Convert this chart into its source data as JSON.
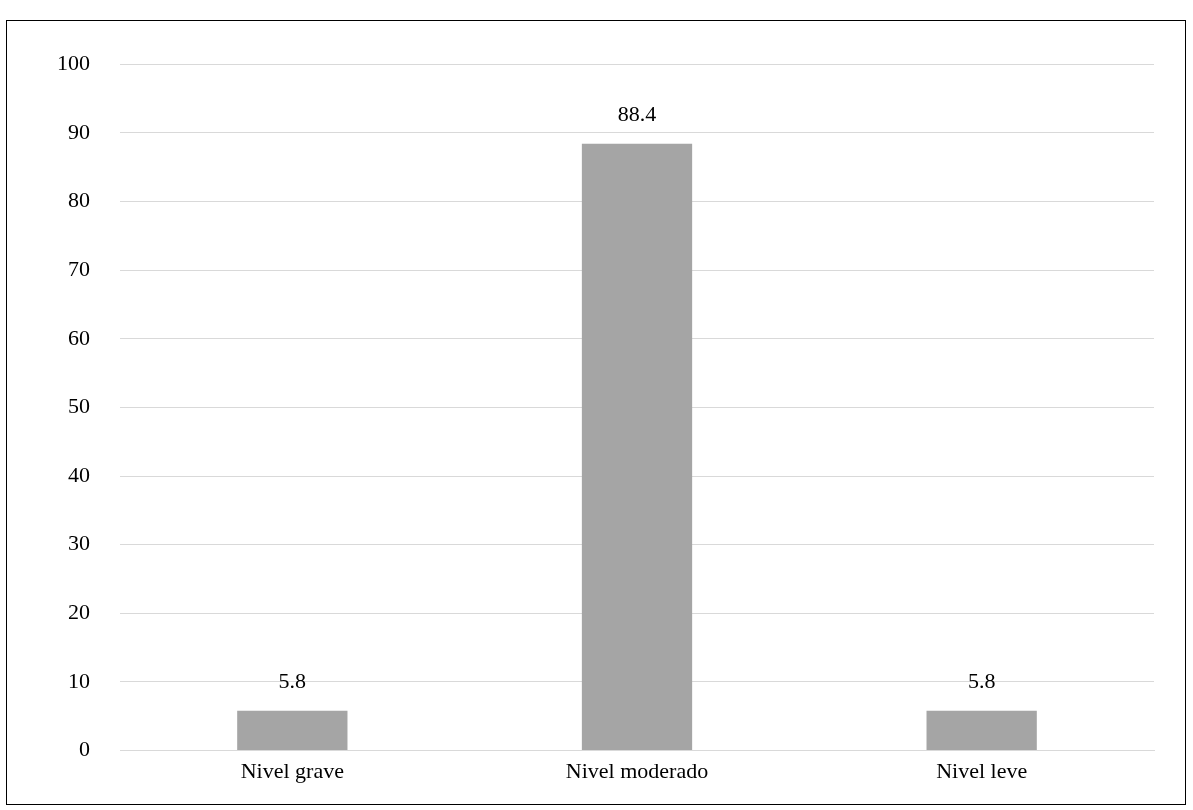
{
  "chart_data": {
    "type": "bar",
    "categories": [
      "Nivel grave",
      "Nivel moderado",
      "Nivel leve"
    ],
    "values": [
      5.8,
      88.4,
      5.8
    ],
    "color": "#a5a5a5",
    "ylim": [
      0,
      100
    ],
    "yticks": [
      0,
      10,
      20,
      30,
      40,
      50,
      60,
      70,
      80,
      90,
      100
    ],
    "grid": "y",
    "data_labels": true
  }
}
